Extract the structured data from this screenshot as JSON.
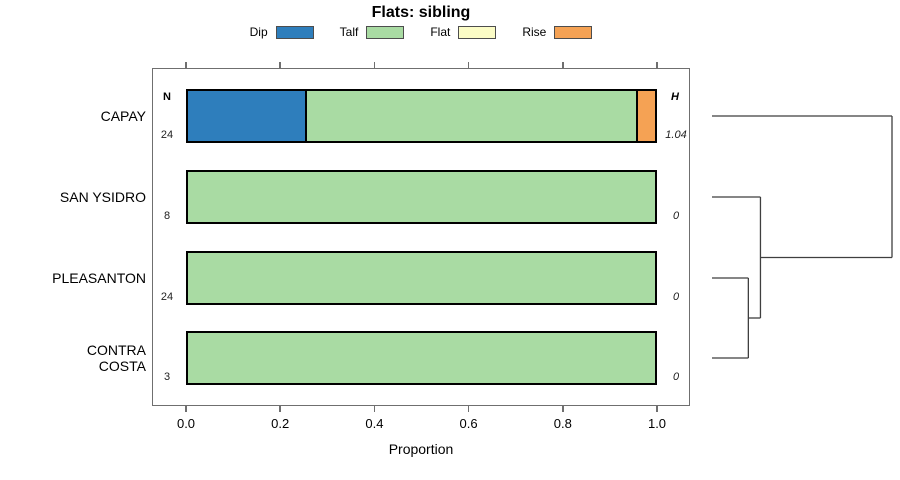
{
  "title": "Flats: sibling",
  "chart_data": {
    "type": "bar",
    "variant": "horizontal-stacked-proportion",
    "title": "Flats: sibling",
    "xlabel": "Proportion",
    "xlim": [
      0,
      1
    ],
    "x_ticks": [
      "0.0",
      "0.2",
      "0.4",
      "0.6",
      "0.8",
      "1.0"
    ],
    "grid": false,
    "legend_position": "top",
    "categories": [
      "CAPAY",
      "SAN YSIDRO",
      "PLEASANTON",
      "CONTRA COSTA"
    ],
    "counts_header": "N",
    "counts": [
      "24",
      "8",
      "24",
      "3"
    ],
    "entropy_header": "H",
    "entropy": [
      "1.04",
      "0",
      "0",
      "0"
    ],
    "series": [
      {
        "name": "Dip",
        "color": "#2e7ebc",
        "values": [
          0.25,
          0,
          0,
          0
        ]
      },
      {
        "name": "Talf",
        "color": "#a9dba3",
        "values": [
          0.7083,
          1,
          1,
          1
        ]
      },
      {
        "name": "Flat",
        "color": "#fbfcc6",
        "values": [
          0,
          0,
          0,
          0
        ]
      },
      {
        "name": "Rise",
        "color": "#f5a254",
        "values": [
          0.0417,
          0,
          0,
          0
        ]
      }
    ]
  },
  "dendrogram": {
    "max_height": 1.04,
    "merges": [
      {
        "children": [
          "PLEASANTON",
          "CONTRA COSTA"
        ],
        "height": 0.21
      },
      {
        "children": [
          "SAN YSIDRO",
          "m0"
        ],
        "height": 0.28
      },
      {
        "children": [
          "CAPAY",
          "m1"
        ],
        "height": 1.04
      }
    ]
  },
  "colors": {
    "axis": "#6f6f6f",
    "bar_border": "#000000",
    "dendrogram_line": "#3f3f3f",
    "value_text": "#333333"
  }
}
